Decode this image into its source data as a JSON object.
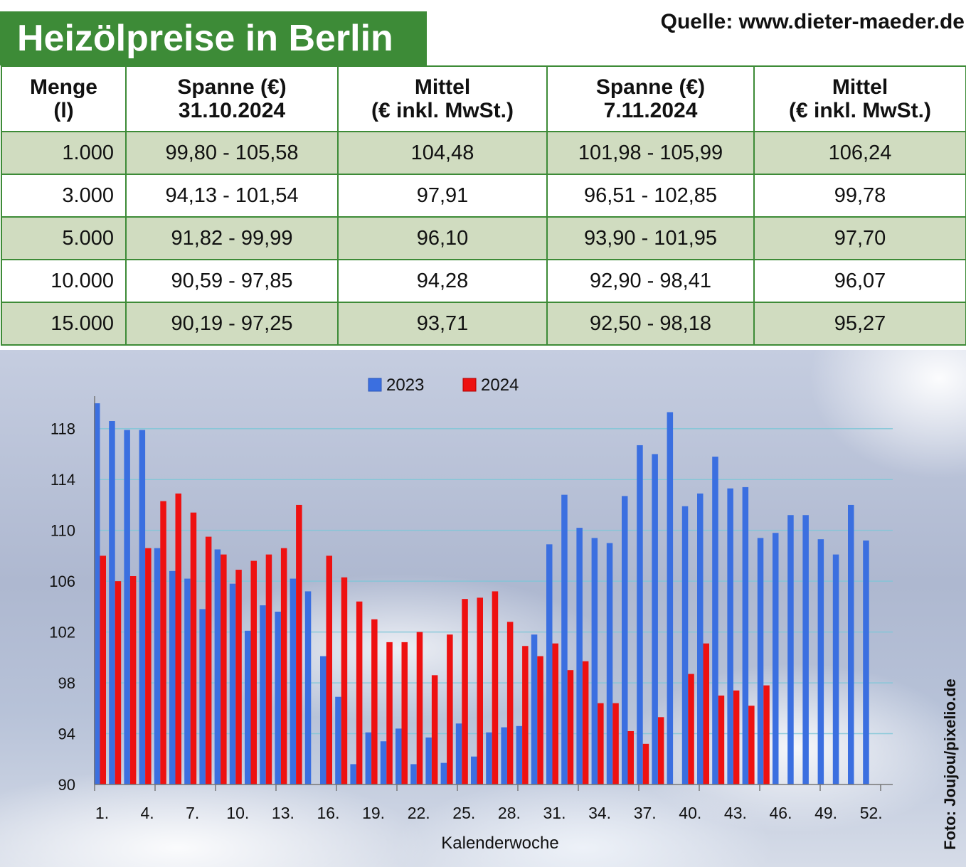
{
  "header": {
    "title": "Heizölpreise in Berlin",
    "source": "Quelle: www.dieter-maeder.de"
  },
  "table": {
    "headers": [
      [
        "Menge",
        "(l)"
      ],
      [
        "Spanne (€)",
        "31.10.2024"
      ],
      [
        "Mittel",
        "(€ inkl. MwSt.)"
      ],
      [
        "Spanne (€)",
        "7.11.2024"
      ],
      [
        "Mittel",
        "(€ inkl. MwSt.)"
      ]
    ],
    "rows": [
      [
        "1.000",
        "99,80 - 105,58",
        "104,48",
        "101,98 - 105,99",
        "106,24"
      ],
      [
        "3.000",
        "94,13 - 101,54",
        "97,91",
        "96,51 - 102,85",
        "99,78"
      ],
      [
        "5.000",
        "91,82 - 99,99",
        "96,10",
        "93,90 - 101,95",
        "97,70"
      ],
      [
        "10.000",
        "90,59 - 97,85",
        "94,28",
        "92,90 - 98,41",
        "96,07"
      ],
      [
        "15.000",
        "90,19 - 97,25",
        "93,71",
        "92,50 - 98,18",
        "95,27"
      ]
    ]
  },
  "photo_credit": "Foto: Joujou/pixelio.de",
  "colors": {
    "green": "#3d8b37",
    "row_shade": "#d0dcc0",
    "series_2023": "#3b6fe0",
    "series_2024": "#ee1111"
  },
  "chart_data": {
    "type": "bar",
    "xlabel": "Kalenderwoche",
    "ylabel": "",
    "ylim": [
      90,
      120
    ],
    "yticks": [
      90,
      94,
      98,
      102,
      106,
      110,
      114,
      118
    ],
    "xtick_labels": [
      "1.",
      "4.",
      "7.",
      "10.",
      "13.",
      "16.",
      "19.",
      "22.",
      "25.",
      "28.",
      "31.",
      "34.",
      "37.",
      "40.",
      "43.",
      "46.",
      "49.",
      "52."
    ],
    "xtick_weeks": [
      1,
      4,
      7,
      10,
      13,
      16,
      19,
      22,
      25,
      28,
      31,
      34,
      37,
      40,
      43,
      46,
      49,
      52
    ],
    "legend_position": "top-center",
    "categories": [
      1,
      2,
      3,
      4,
      5,
      6,
      7,
      8,
      9,
      10,
      11,
      12,
      13,
      14,
      15,
      16,
      17,
      18,
      19,
      20,
      21,
      22,
      23,
      24,
      25,
      26,
      27,
      28,
      29,
      30,
      31,
      32,
      33,
      34,
      35,
      36,
      37,
      38,
      39,
      40,
      41,
      42,
      43,
      44,
      45,
      46,
      47,
      48,
      49,
      50,
      51,
      52
    ],
    "series": [
      {
        "name": "2023",
        "values": [
          120.0,
          118.6,
          117.9,
          117.9,
          108.6,
          106.8,
          106.2,
          103.8,
          108.5,
          105.8,
          102.1,
          104.1,
          103.6,
          106.2,
          105.2,
          100.1,
          96.9,
          91.6,
          94.1,
          93.4,
          94.4,
          91.6,
          93.7,
          91.7,
          94.8,
          92.2,
          94.1,
          94.5,
          94.6,
          101.8,
          108.9,
          112.8,
          110.2,
          109.4,
          109.0,
          112.7,
          116.7,
          116.0,
          119.3,
          111.9,
          112.9,
          115.8,
          113.3,
          113.4,
          109.4,
          109.8,
          111.2,
          111.2,
          109.3,
          108.1,
          112.0,
          109.2
        ]
      },
      {
        "name": "2024",
        "values": [
          108.0,
          106.0,
          106.4,
          108.6,
          112.3,
          112.9,
          111.4,
          109.5,
          108.1,
          106.9,
          107.6,
          108.1,
          108.6,
          112.0,
          null,
          108.0,
          106.3,
          104.4,
          103.0,
          101.2,
          101.2,
          102.0,
          98.6,
          101.8,
          104.6,
          104.7,
          105.2,
          102.8,
          100.9,
          100.1,
          101.1,
          99.0,
          99.7,
          96.4,
          96.4,
          94.2,
          93.2,
          95.3,
          null,
          98.7,
          101.1,
          97.0,
          97.4,
          96.2,
          97.8,
          null,
          null,
          null,
          null,
          null,
          null,
          null
        ]
      }
    ]
  }
}
